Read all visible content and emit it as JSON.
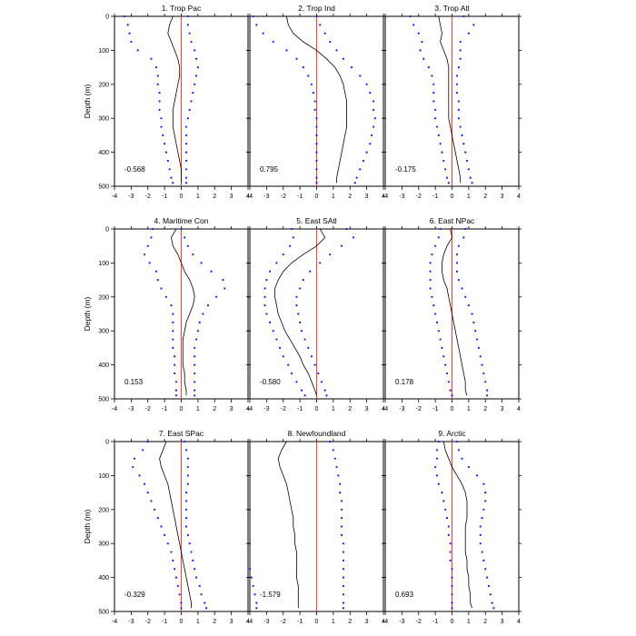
{
  "colors": {
    "mean_line": "#000000",
    "bound_dots": "#1a1adf",
    "zero_line": "#ff3b3b",
    "axes": "#000000"
  },
  "chart_data": {
    "type": "line",
    "layout": "3x3 grid of vertical profile panels",
    "shared": {
      "xlim": [
        -4,
        4
      ],
      "ylim": [
        0,
        500
      ],
      "y_inverted": true,
      "x_ticks": [
        -4,
        -3,
        -2,
        -1,
        0,
        1,
        2,
        3,
        4
      ],
      "y_ticks": [
        0,
        100,
        200,
        300,
        400,
        500
      ],
      "ylabel": "Depth (m)",
      "xlabel": "",
      "grid": false,
      "zero_line_x": 0
    },
    "panels": [
      {
        "title": "1. Trop Pac",
        "value_label": "-0.568",
        "depth": [
          0,
          25,
          50,
          75,
          100,
          125,
          150,
          175,
          200,
          225,
          250,
          275,
          300,
          325,
          350,
          375,
          400,
          425,
          450,
          475,
          490
        ],
        "mean": [
          -0.5,
          -0.7,
          -0.8,
          -0.6,
          -0.4,
          -0.2,
          -0.1,
          -0.1,
          -0.2,
          -0.3,
          -0.4,
          -0.5,
          -0.5,
          -0.5,
          -0.4,
          -0.3,
          -0.2,
          -0.1,
          0.0,
          0.0,
          0.0
        ],
        "lower": [
          -3.4,
          -3.2,
          -3.1,
          -3.0,
          -2.6,
          -1.8,
          -1.5,
          -1.4,
          -1.4,
          -1.3,
          -1.3,
          -1.3,
          -1.2,
          -1.2,
          -1.1,
          -1.0,
          -0.9,
          -0.8,
          -0.7,
          -0.6,
          -0.5
        ],
        "upper": [
          0.4,
          0.4,
          0.5,
          0.6,
          0.8,
          0.9,
          1.0,
          0.9,
          0.8,
          0.7,
          0.6,
          0.5,
          0.4,
          0.3,
          0.3,
          0.3,
          0.3,
          0.3,
          0.3,
          0.3,
          0.3
        ]
      },
      {
        "title": "2. Trop Ind",
        "value_label": "0.795",
        "depth": [
          0,
          25,
          50,
          75,
          100,
          125,
          150,
          175,
          200,
          225,
          250,
          275,
          300,
          325,
          350,
          375,
          400,
          425,
          450,
          475,
          490
        ],
        "mean": [
          -1.8,
          -1.7,
          -1.4,
          -0.8,
          0.0,
          0.6,
          1.1,
          1.4,
          1.6,
          1.7,
          1.8,
          1.8,
          1.8,
          1.8,
          1.7,
          1.6,
          1.5,
          1.4,
          1.3,
          1.2,
          1.2
        ],
        "lower": [
          -3.8,
          -3.6,
          -3.2,
          -2.6,
          -1.8,
          -1.2,
          -0.8,
          -0.5,
          -0.3,
          -0.2,
          -0.1,
          -0.1,
          0.0,
          0.0,
          0.0,
          0.0,
          0.0,
          0.0,
          0.0,
          0.0,
          0.0
        ],
        "upper": [
          0.0,
          0.2,
          0.5,
          0.8,
          1.2,
          1.6,
          2.1,
          2.6,
          3.0,
          3.2,
          3.4,
          3.4,
          3.5,
          3.4,
          3.3,
          3.2,
          3.0,
          2.8,
          2.6,
          2.4,
          2.3
        ]
      },
      {
        "title": "3. Trop Atl",
        "value_label": "-0.175",
        "depth": [
          0,
          25,
          50,
          75,
          100,
          125,
          150,
          175,
          200,
          225,
          250,
          275,
          300,
          325,
          350,
          375,
          400,
          425,
          450,
          475,
          490
        ],
        "mean": [
          -0.8,
          -0.7,
          -0.6,
          -0.7,
          -0.5,
          -0.3,
          -0.2,
          -0.2,
          -0.2,
          -0.2,
          -0.2,
          -0.2,
          -0.2,
          -0.1,
          0.0,
          0.1,
          0.2,
          0.3,
          0.4,
          0.5,
          0.5
        ],
        "lower": [
          -2.5,
          -2.3,
          -2.0,
          -1.8,
          -1.9,
          -1.7,
          -1.4,
          -1.2,
          -1.1,
          -1.1,
          -1.1,
          -1.0,
          -1.0,
          -0.9,
          -0.8,
          -0.7,
          -0.6,
          -0.5,
          -0.4,
          -0.3,
          -0.2
        ],
        "upper": [
          0.7,
          1.3,
          1.0,
          0.5,
          0.5,
          0.5,
          0.4,
          0.3,
          0.3,
          0.3,
          0.4,
          0.4,
          0.4,
          0.5,
          0.6,
          0.7,
          0.8,
          0.9,
          1.0,
          1.1,
          1.2
        ]
      },
      {
        "title": "4. Maritime Con",
        "value_label": "0.153",
        "depth": [
          0,
          25,
          50,
          75,
          100,
          125,
          150,
          175,
          200,
          225,
          250,
          275,
          300,
          325,
          350,
          375,
          400,
          425,
          450,
          475,
          490
        ],
        "mean": [
          -0.3,
          -0.6,
          -0.5,
          -0.2,
          0.0,
          0.2,
          0.5,
          0.7,
          0.8,
          0.7,
          0.5,
          0.3,
          0.2,
          0.1,
          0.1,
          0.1,
          0.1,
          0.2,
          0.2,
          0.3,
          0.3
        ],
        "lower": [
          -1.7,
          -1.8,
          -2.0,
          -2.2,
          -1.9,
          -1.5,
          -1.4,
          -1.2,
          -0.9,
          -0.6,
          -0.5,
          -0.5,
          -0.5,
          -0.5,
          -0.5,
          -0.4,
          -0.4,
          -0.4,
          -0.3,
          -0.3,
          -0.3
        ],
        "upper": [
          0.0,
          0.2,
          0.4,
          0.7,
          1.2,
          1.8,
          2.5,
          2.6,
          2.1,
          1.6,
          1.3,
          1.1,
          1.0,
          0.9,
          0.8,
          0.8,
          0.8,
          0.8,
          0.8,
          0.8,
          0.8
        ]
      },
      {
        "title": "5. East SAtl",
        "value_label": "-0.580",
        "depth": [
          0,
          25,
          50,
          75,
          100,
          125,
          150,
          175,
          200,
          225,
          250,
          275,
          300,
          325,
          350,
          375,
          400,
          425,
          450,
          475,
          490
        ],
        "mean": [
          0.2,
          0.5,
          0.0,
          -0.8,
          -1.5,
          -2.0,
          -2.3,
          -2.5,
          -2.5,
          -2.4,
          -2.3,
          -2.1,
          -1.9,
          -1.6,
          -1.3,
          -1.0,
          -0.8,
          -0.5,
          -0.3,
          -0.1,
          0.0
        ],
        "lower": [
          -1.5,
          -1.4,
          -1.6,
          -2.0,
          -2.4,
          -2.8,
          -3.0,
          -3.1,
          -3.1,
          -3.1,
          -3.0,
          -2.8,
          -2.6,
          -2.4,
          -2.2,
          -2.0,
          -1.7,
          -1.5,
          -1.2,
          -0.9,
          -0.7
        ],
        "upper": [
          1.8,
          2.2,
          1.5,
          0.8,
          0.2,
          -0.4,
          -0.8,
          -1.0,
          -1.2,
          -1.2,
          -1.1,
          -1.0,
          -0.9,
          -0.7,
          -0.5,
          -0.3,
          -0.1,
          0.1,
          0.3,
          0.5,
          0.6
        ]
      },
      {
        "title": "6. East NPac",
        "value_label": "0.178",
        "depth": [
          0,
          25,
          50,
          75,
          100,
          125,
          150,
          175,
          200,
          225,
          250,
          275,
          300,
          325,
          350,
          375,
          400,
          425,
          450,
          475,
          490
        ],
        "mean": [
          -0.1,
          0.0,
          -0.3,
          -0.5,
          -0.6,
          -0.6,
          -0.5,
          -0.3,
          -0.2,
          -0.1,
          0.0,
          0.1,
          0.2,
          0.3,
          0.4,
          0.5,
          0.6,
          0.7,
          0.8,
          0.8,
          0.9
        ],
        "lower": [
          -0.7,
          -0.8,
          -1.0,
          -1.2,
          -1.3,
          -1.3,
          -1.3,
          -1.3,
          -1.2,
          -1.1,
          -1.0,
          -0.9,
          -0.8,
          -0.7,
          -0.6,
          -0.5,
          -0.4,
          -0.3,
          -0.2,
          -0.1,
          0.0
        ],
        "upper": [
          0.8,
          0.7,
          0.4,
          0.3,
          0.3,
          0.3,
          0.4,
          0.6,
          0.8,
          1.0,
          1.2,
          1.3,
          1.4,
          1.5,
          1.6,
          1.7,
          1.8,
          1.9,
          2.0,
          2.1,
          2.1
        ]
      },
      {
        "title": "7. East SPac",
        "value_label": "-0.329",
        "depth": [
          0,
          25,
          50,
          75,
          100,
          125,
          150,
          175,
          200,
          225,
          250,
          275,
          300,
          325,
          350,
          375,
          400,
          425,
          450,
          475,
          490
        ],
        "mean": [
          -0.9,
          -1.1,
          -1.3,
          -1.2,
          -1.0,
          -0.8,
          -0.7,
          -0.6,
          -0.5,
          -0.4,
          -0.3,
          -0.2,
          -0.1,
          0.0,
          0.1,
          0.2,
          0.3,
          0.4,
          0.5,
          0.6,
          0.6
        ],
        "lower": [
          -2.0,
          -2.3,
          -2.8,
          -2.9,
          -2.5,
          -2.2,
          -2.0,
          -1.8,
          -1.6,
          -1.4,
          -1.2,
          -1.0,
          -0.8,
          -0.6,
          -0.5,
          -0.4,
          -0.3,
          -0.2,
          -0.1,
          0.0,
          0.0
        ],
        "upper": [
          0.2,
          0.3,
          0.4,
          0.4,
          0.4,
          0.4,
          0.3,
          0.3,
          0.3,
          0.3,
          0.3,
          0.4,
          0.5,
          0.6,
          0.7,
          0.8,
          0.9,
          1.1,
          1.2,
          1.4,
          1.5
        ]
      },
      {
        "title": "8. Newfoundland",
        "value_label": "-1.579",
        "depth": [
          0,
          25,
          50,
          75,
          100,
          125,
          150,
          175,
          200,
          225,
          250,
          275,
          300,
          325,
          350,
          375,
          400,
          425,
          450,
          475,
          490
        ],
        "mean": [
          -1.8,
          -2.1,
          -2.3,
          -2.2,
          -2.0,
          -1.8,
          -1.7,
          -1.6,
          -1.5,
          -1.4,
          -1.4,
          -1.3,
          -1.3,
          -1.2,
          -1.2,
          -1.2,
          -1.2,
          -1.1,
          -1.1,
          -1.1,
          -1.1
        ],
        "lower": [
          null,
          null,
          null,
          null,
          null,
          null,
          null,
          null,
          null,
          null,
          null,
          null,
          null,
          null,
          null,
          -4.0,
          -3.9,
          -3.8,
          -3.7,
          -3.6,
          -3.6
        ],
        "upper": [
          0.8,
          1.0,
          1.1,
          1.2,
          1.3,
          1.4,
          1.4,
          1.5,
          1.5,
          1.5,
          1.5,
          1.5,
          1.6,
          1.6,
          1.6,
          1.6,
          1.6,
          1.6,
          1.6,
          1.6,
          1.6
        ]
      },
      {
        "title": "9. Arctic",
        "value_label": "0.693",
        "depth": [
          0,
          25,
          50,
          75,
          100,
          125,
          150,
          175,
          200,
          225,
          250,
          275,
          300,
          325,
          350,
          375,
          400,
          425,
          450,
          475,
          490
        ],
        "mean": [
          -0.5,
          -0.4,
          -0.2,
          0.0,
          0.3,
          0.6,
          0.8,
          0.9,
          0.9,
          0.9,
          0.8,
          0.8,
          0.8,
          0.8,
          0.9,
          0.9,
          1.0,
          1.0,
          1.1,
          1.1,
          1.2
        ],
        "lower": [
          -0.8,
          -0.9,
          -0.9,
          -1.0,
          -0.9,
          -0.8,
          -0.6,
          -0.5,
          -0.4,
          -0.3,
          -0.2,
          -0.2,
          -0.1,
          -0.1,
          -0.1,
          0.0,
          0.0,
          0.0,
          0.0,
          0.0,
          0.0
        ],
        "upper": [
          0.3,
          0.4,
          0.6,
          1.0,
          1.5,
          1.9,
          2.0,
          2.0,
          1.9,
          1.8,
          1.7,
          1.7,
          1.7,
          1.8,
          1.9,
          2.0,
          2.1,
          2.2,
          2.3,
          2.4,
          2.5
        ]
      }
    ]
  }
}
